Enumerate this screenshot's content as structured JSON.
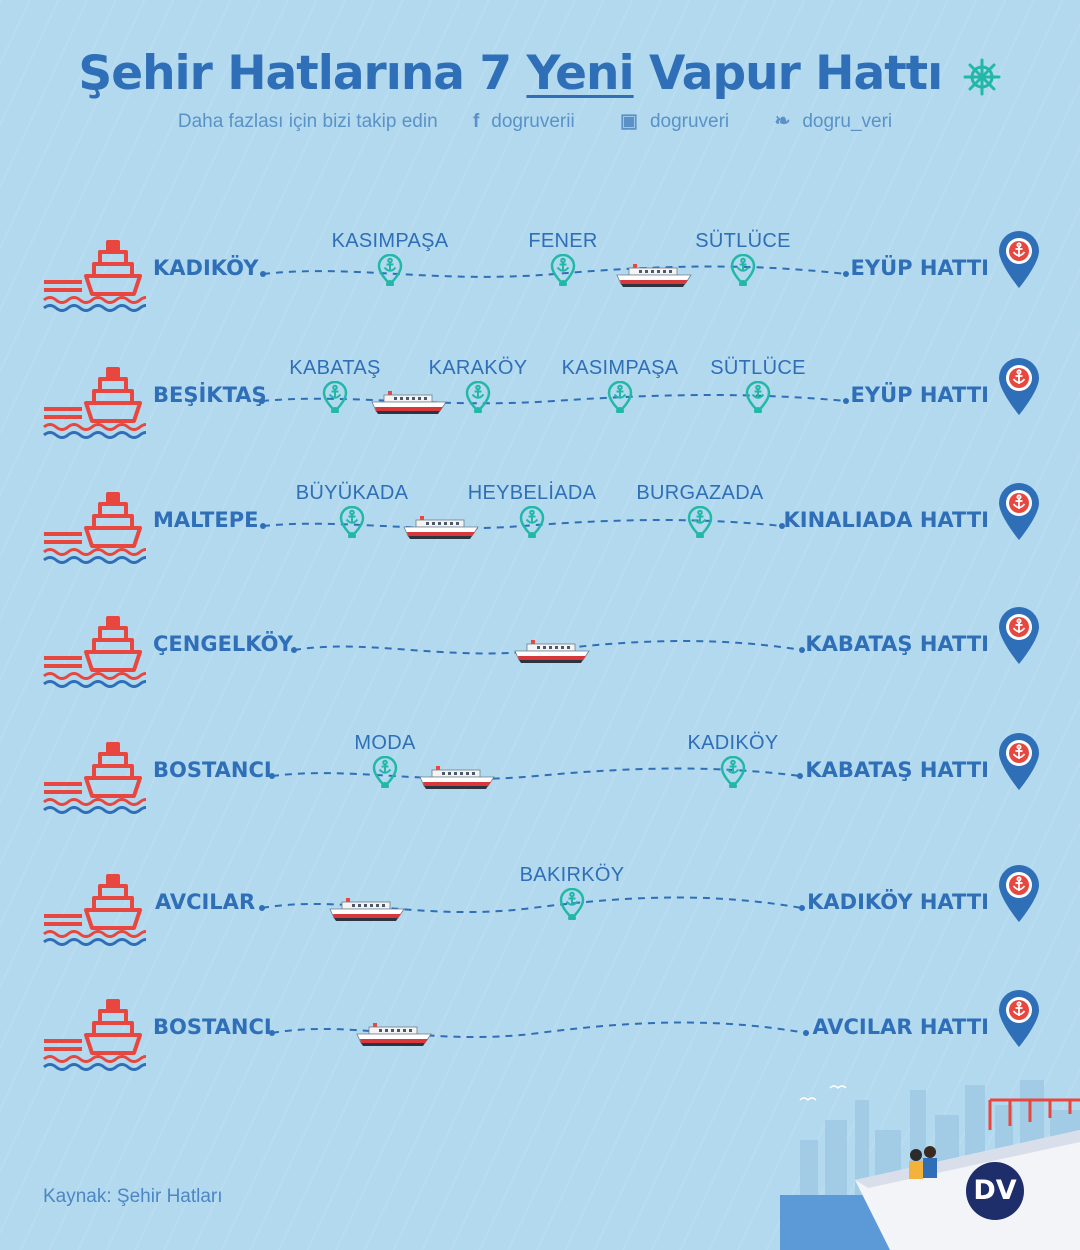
{
  "header": {
    "title_part1": "Şehir Hatlarına 7",
    "title_part2": "Yeni",
    "title_part3": "Vapur Hattı",
    "follow_text": "Daha fazlası için bizi takip edin",
    "facebook": "dogruverii",
    "instagram": "dogruveri",
    "twitter": "dogru_veri"
  },
  "routes": [
    {
      "origin": "KADIKÖY",
      "dest": "EYÜP HATTI",
      "stops": [
        "KASIMPAŞA",
        "FENER",
        "SÜTLÜCE"
      ]
    },
    {
      "origin": "BEŞİKTAŞ",
      "dest": "EYÜP HATTI",
      "stops": [
        "KABATAŞ",
        "KARAKÖY",
        "KASIMPAŞA",
        "SÜTLÜCE"
      ]
    },
    {
      "origin": "MALTEPE",
      "dest": "KINALIADA HATTI",
      "stops": [
        "BÜYÜKADA",
        "HEYBELİADA",
        "BURGAZADA"
      ]
    },
    {
      "origin": "ÇENGELKÖY",
      "dest": "KABATAŞ HATTI",
      "stops": []
    },
    {
      "origin": "BOSTANCI",
      "dest": "KABATAŞ HATTI",
      "stops": [
        "MODA",
        "KADIKÖY"
      ]
    },
    {
      "origin": "AVCILAR",
      "dest": "KADIKÖY HATTI",
      "stops": [
        "BAKIRKÖY"
      ]
    },
    {
      "origin": "BOSTANCI",
      "dest": "AVCILAR HATTI",
      "stops": []
    }
  ],
  "footer": {
    "source": "Kaynak: Şehir Hatları",
    "logo": "DV"
  },
  "colors": {
    "title": "#2f6fb8",
    "ferry_icon": "#e8473f",
    "anchor_stop": "#22b8a7",
    "pin": "#2f6fb8",
    "background": "#b3d9ee"
  }
}
